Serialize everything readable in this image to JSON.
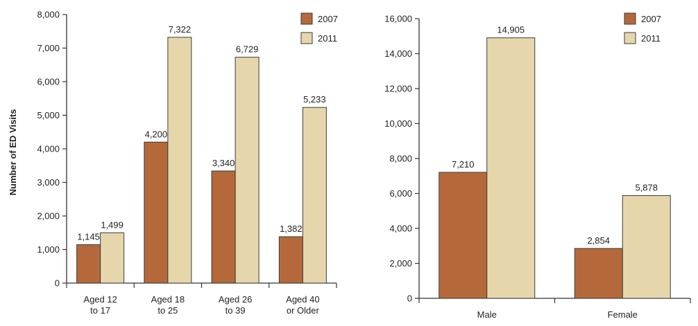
{
  "colors": {
    "2007": "#b5693a",
    "2011": "#e6d6ab",
    "outline": "#3a3a3a"
  },
  "chart_data": [
    {
      "type": "bar",
      "title": "",
      "xlabel": "",
      "ylabel": "Number of ED Visits",
      "ylim": [
        0,
        8000
      ],
      "yticks": [
        "0",
        "1,000",
        "2,000",
        "3,000",
        "4,000",
        "5,000",
        "6,000",
        "7,000",
        "8,000"
      ],
      "categories": [
        [
          "Aged 12",
          "to 17"
        ],
        [
          "Aged 18",
          "to 25"
        ],
        [
          "Aged 26",
          "to 39"
        ],
        [
          "Aged 40",
          "or Older"
        ]
      ],
      "series": [
        {
          "name": "2007",
          "values": [
            1145,
            4200,
            3340,
            1382
          ],
          "labels": [
            "1,145",
            "4,200",
            "3,340",
            "1,382"
          ]
        },
        {
          "name": "2011",
          "values": [
            1499,
            7322,
            6729,
            5233
          ],
          "labels": [
            "1,499",
            "7,322",
            "6,729",
            "5,233"
          ]
        }
      ],
      "legend": "top-right",
      "grid": false
    },
    {
      "type": "bar",
      "title": "",
      "xlabel": "",
      "ylabel": "",
      "ylim": [
        0,
        16000
      ],
      "yticks": [
        "0",
        "2,000",
        "4,000",
        "6,000",
        "8,000",
        "10,000",
        "12,000",
        "14,000",
        "16,000"
      ],
      "categories": [
        [
          "Male"
        ],
        [
          "Female"
        ]
      ],
      "series": [
        {
          "name": "2007",
          "values": [
            7210,
            2854
          ],
          "labels": [
            "7,210",
            "2,854"
          ]
        },
        {
          "name": "2011",
          "values": [
            14905,
            5878
          ],
          "labels": [
            "14,905",
            "5,878"
          ]
        }
      ],
      "legend": "top-right",
      "grid": false
    }
  ]
}
